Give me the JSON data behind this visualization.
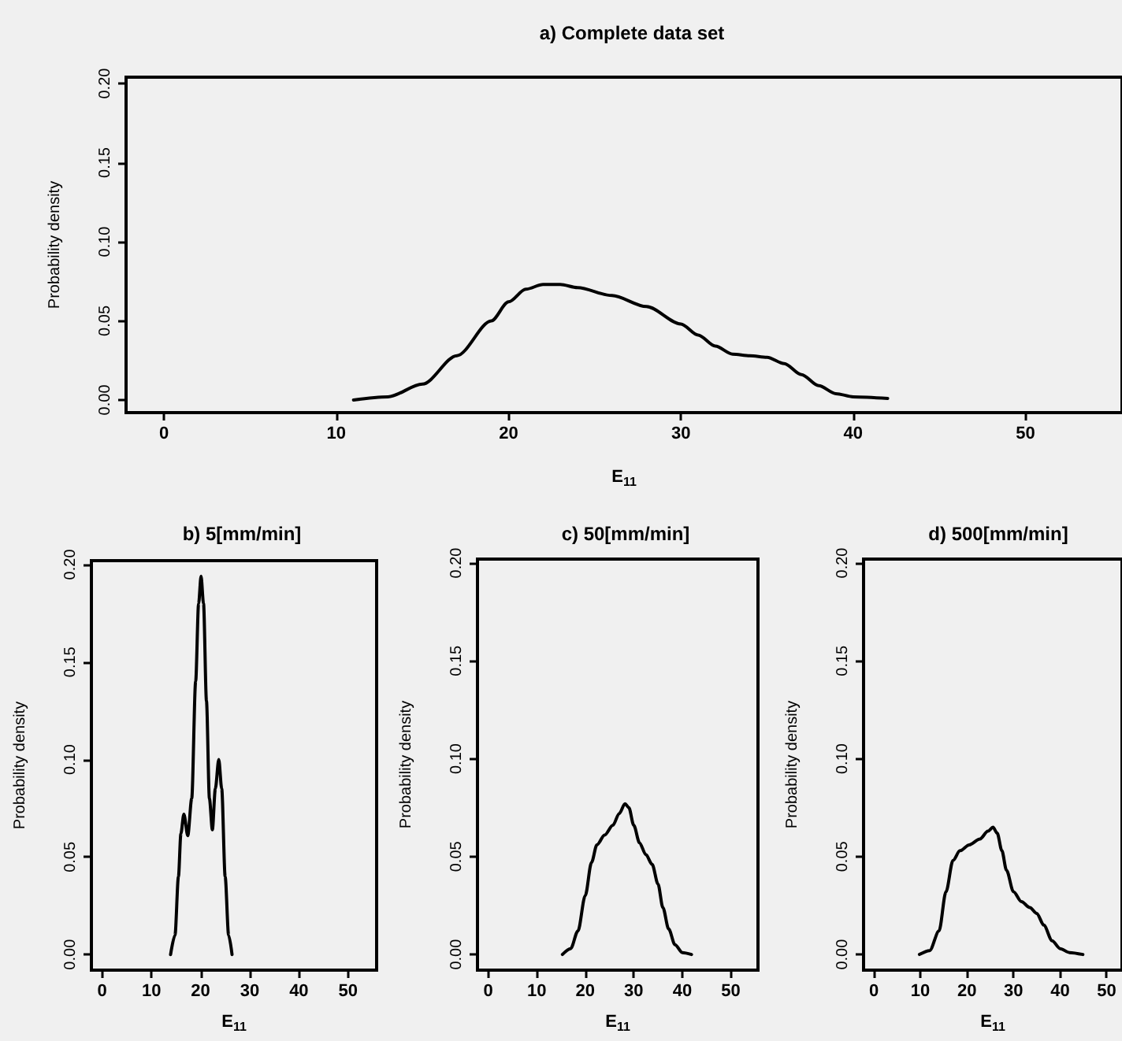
{
  "chart_data": [
    {
      "type": "line",
      "title": "a) Complete data set",
      "xlabel": "E$_{11}$",
      "ylabel": "Probability density",
      "color": "#000000",
      "marker": "none",
      "line_style": "solid",
      "xlim": [
        -2.2,
        55.6
      ],
      "ylim": [
        -0.008,
        0.204
      ],
      "xticks": [
        0,
        10,
        20,
        30,
        40,
        50
      ],
      "yticks": [
        {
          "value": 0,
          "label": "0.00"
        },
        {
          "value": 0.05,
          "label": "0.05"
        },
        {
          "value": 0.1,
          "label": "0.10"
        },
        {
          "value": 0.15,
          "label": "0.15"
        },
        {
          "value": 0.2,
          "label": "0.20"
        }
      ],
      "x": [
        11,
        13,
        15,
        17,
        19,
        20,
        21,
        22,
        23,
        24,
        26,
        28,
        30,
        31,
        32,
        33,
        34,
        35,
        36,
        37,
        38,
        39,
        40,
        42
      ],
      "values": [
        0,
        0.002,
        0.01,
        0.028,
        0.05,
        0.062,
        0.07,
        0.073,
        0.073,
        0.071,
        0.066,
        0.059,
        0.048,
        0.041,
        0.034,
        0.029,
        0.028,
        0.027,
        0.023,
        0.016,
        0.009,
        0.004,
        0.002,
        0.001
      ]
    },
    {
      "type": "line",
      "title": "b) 5[mm/min]",
      "xlabel": "E$_{11}$",
      "ylabel": "Probability density",
      "color": "#000000",
      "marker": "none",
      "line_style": "solid",
      "xlim": [
        -2.2,
        55.8
      ],
      "ylim": [
        -0.008,
        0.202
      ],
      "xticks": [
        0,
        10,
        20,
        30,
        40,
        50
      ],
      "yticks": [
        {
          "value": 0,
          "label": "0.00"
        },
        {
          "value": 0.05,
          "label": "0.05"
        },
        {
          "value": 0.1,
          "label": "0.10"
        },
        {
          "value": 0.15,
          "label": "0.15"
        },
        {
          "value": 0.2,
          "label": "0.20"
        }
      ],
      "x": [
        13.9,
        14.8,
        15.5,
        16,
        16.6,
        17.4,
        18.2,
        19,
        19.6,
        20.1,
        20.6,
        21.2,
        21.8,
        22.4,
        23,
        23.7,
        24.3,
        25,
        25.7,
        26.4
      ],
      "values": [
        0,
        0.01,
        0.04,
        0.062,
        0.072,
        0.061,
        0.08,
        0.14,
        0.18,
        0.194,
        0.18,
        0.13,
        0.08,
        0.064,
        0.085,
        0.1,
        0.085,
        0.04,
        0.01,
        0
      ]
    },
    {
      "type": "line",
      "title": "c) 50[mm/min]",
      "xlabel": "E$_{11}$",
      "ylabel": "Probability density",
      "color": "#000000",
      "marker": "none",
      "line_style": "solid",
      "xlim": [
        -2.2,
        55.6
      ],
      "ylim": [
        -0.008,
        0.202
      ],
      "xticks": [
        0,
        10,
        20,
        30,
        40,
        50
      ],
      "yticks": [
        {
          "value": 0,
          "label": "0.00"
        },
        {
          "value": 0.05,
          "label": "0.05"
        },
        {
          "value": 0.1,
          "label": "0.10"
        },
        {
          "value": 0.15,
          "label": "0.15"
        },
        {
          "value": 0.2,
          "label": "0.20"
        }
      ],
      "x": [
        15.3,
        17,
        18.5,
        20,
        21.3,
        22.4,
        24,
        25.7,
        27,
        28.2,
        29,
        30,
        31.2,
        32.5,
        33.8,
        35,
        36,
        37.2,
        38.5,
        40,
        41.9
      ],
      "values": [
        0,
        0.003,
        0.012,
        0.03,
        0.047,
        0.056,
        0.061,
        0.066,
        0.072,
        0.077,
        0.075,
        0.066,
        0.057,
        0.051,
        0.046,
        0.036,
        0.024,
        0.013,
        0.005,
        0.001,
        0
      ]
    },
    {
      "type": "line",
      "title": "d) 500[mm/min]",
      "xlabel": "E$_{11}$",
      "ylabel": "Probability density",
      "color": "#000000",
      "marker": "none",
      "line_style": "solid",
      "xlim": [
        -2.2,
        53.3
      ],
      "ylim": [
        -0.008,
        0.202
      ],
      "xticks": [
        0,
        10,
        20,
        30,
        40,
        50
      ],
      "yticks": [
        {
          "value": 0,
          "label": "0.00"
        },
        {
          "value": 0.05,
          "label": "0.05"
        },
        {
          "value": 0.1,
          "label": "0.10"
        },
        {
          "value": 0.15,
          "label": "0.15"
        },
        {
          "value": 0.2,
          "label": "0.20"
        }
      ],
      "x": [
        9.8,
        12,
        14,
        15.5,
        17,
        18.5,
        20.5,
        22.8,
        24.5,
        25.6,
        26.5,
        27.5,
        28.5,
        30,
        31.7,
        33.5,
        35,
        36.5,
        38.3,
        40,
        42,
        44.9
      ],
      "values": [
        0,
        0.002,
        0.012,
        0.032,
        0.048,
        0.053,
        0.056,
        0.059,
        0.063,
        0.065,
        0.062,
        0.053,
        0.043,
        0.032,
        0.027,
        0.024,
        0.021,
        0.015,
        0.007,
        0.003,
        0.001,
        0
      ]
    }
  ]
}
